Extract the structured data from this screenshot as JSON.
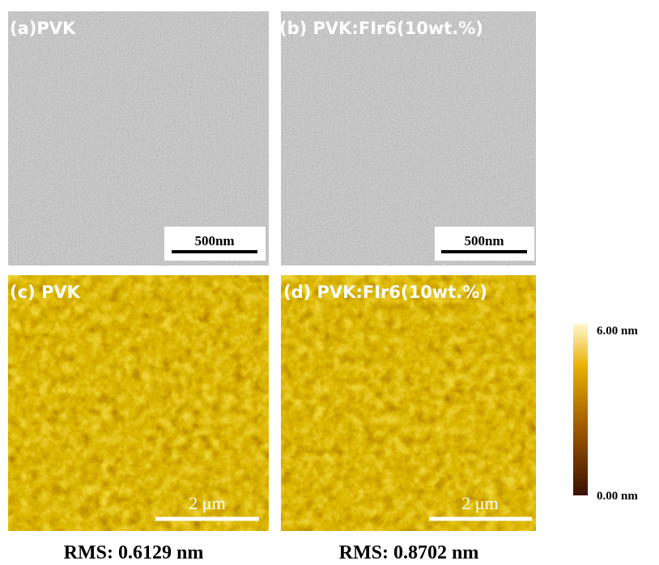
{
  "panels": [
    {
      "label": "(a)PVK",
      "scale_bar": "500nm"
    },
    {
      "label": "(b) PVK:FIr6(10wt.%)",
      "scale_bar": "500nm"
    },
    {
      "label": "(c) PVK",
      "scale_bar": "2 μm"
    },
    {
      "label": "(d)  PVK:FIr6(10wt.%)",
      "scale_bar": "2 μm"
    }
  ],
  "colorbar": {
    "max": "6.00 nm",
    "min": "0.00 nm"
  },
  "rms": [
    "RMS: 0.6129 nm",
    "RMS: 0.8702 nm"
  ]
}
